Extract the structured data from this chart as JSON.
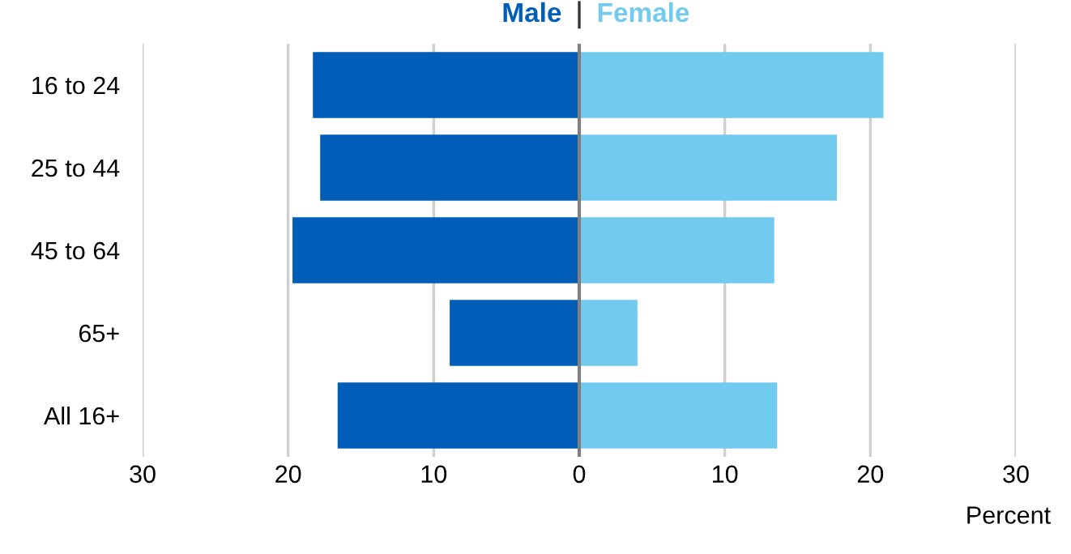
{
  "chart_data": {
    "type": "bar",
    "orientation": "horizontal",
    "stacked": true,
    "categories": [
      "16 to 24",
      "25 to 44",
      "45 to 64",
      "65+",
      "All 16+"
    ],
    "series": [
      {
        "name": "Male",
        "color": "#005eb8",
        "values": [
          -18.3,
          -17.8,
          -19.7,
          -8.9,
          -16.6
        ]
      },
      {
        "name": "Female",
        "color": "#71cbef",
        "values": [
          20.9,
          17.7,
          13.4,
          4.0,
          13.6
        ]
      }
    ],
    "xlim": [
      -30,
      30
    ],
    "xticks": [
      {
        "value": -30,
        "label": "30"
      },
      {
        "value": -20,
        "label": "20"
      },
      {
        "value": -10,
        "label": "10"
      },
      0,
      10,
      20,
      30
    ],
    "xlabel": "Percent",
    "grid": "x",
    "legend": "top"
  }
}
